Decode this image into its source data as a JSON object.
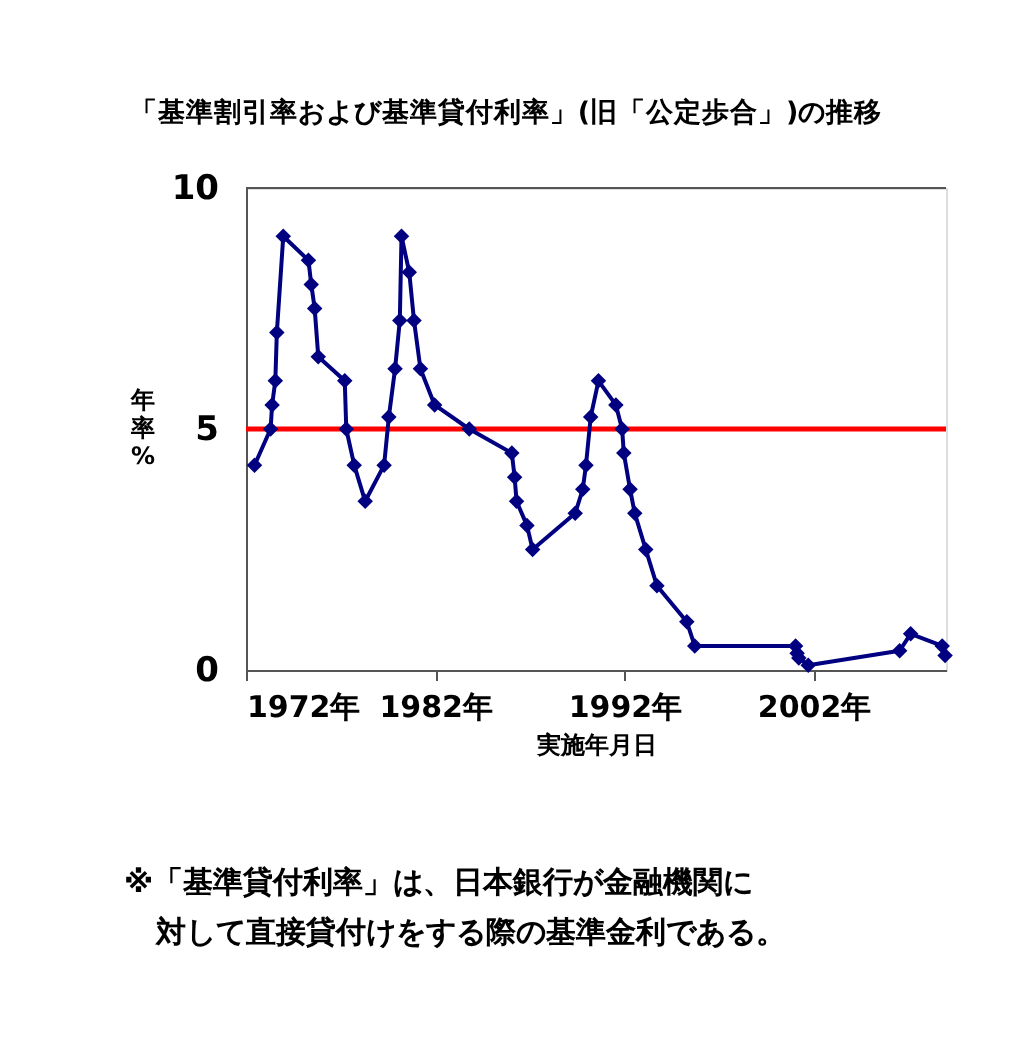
{
  "chart_data": {
    "type": "line",
    "title": "「基準割引率および基準貸付利率」(旧「公定歩合」)の推移",
    "xlabel": "実施年月日",
    "ylabel": "年率%",
    "x": [
      1972.45,
      1973.3,
      1973.38,
      1973.55,
      1973.63,
      1973.97,
      1975.3,
      1975.45,
      1975.63,
      1975.82,
      1977.22,
      1977.3,
      1977.72,
      1978.3,
      1979.3,
      1979.55,
      1979.88,
      1980.13,
      1980.22,
      1980.63,
      1980.88,
      1981.22,
      1981.97,
      1983.8,
      1986.05,
      1986.2,
      1986.3,
      1986.85,
      1987.15,
      1989.4,
      1989.8,
      1989.97,
      1990.22,
      1990.63,
      1991.55,
      1991.88,
      1991.97,
      1992.3,
      1992.55,
      1993.13,
      1993.72,
      1995.3,
      1995.72,
      2001.05,
      2001.13,
      2001.22,
      2001.72,
      2006.55,
      2007.13,
      2008.8,
      2008.95
    ],
    "series": [
      {
        "color": "#000080",
        "values": [
          4.25,
          5.0,
          5.5,
          6.0,
          7.0,
          9.0,
          8.5,
          8.0,
          7.5,
          6.5,
          6.0,
          5.0,
          4.25,
          3.5,
          4.25,
          5.25,
          6.25,
          7.25,
          9.0,
          8.25,
          7.25,
          6.25,
          5.5,
          5.0,
          4.5,
          4.0,
          3.5,
          3.0,
          2.5,
          3.25,
          3.75,
          4.25,
          5.25,
          6.0,
          5.5,
          5.0,
          4.5,
          3.75,
          3.25,
          2.5,
          1.75,
          1.0,
          0.5,
          0.5,
          0.35,
          0.25,
          0.1,
          0.4,
          0.75,
          0.5,
          0.3
        ]
      }
    ],
    "xlim": [
      1972,
      2009
    ],
    "xticks": [
      {
        "value": 1972,
        "label": "1972年"
      },
      {
        "value": 1982,
        "label": "1982年"
      },
      {
        "value": 1992,
        "label": "1992年"
      },
      {
        "value": 2002,
        "label": "2002年"
      }
    ],
    "ylim": [
      0,
      10
    ],
    "yticks": [
      0,
      5,
      10
    ],
    "ref_lines": [
      {
        "axis": "y",
        "value": 5,
        "color": "#ff0000",
        "line_style": "solid"
      }
    ],
    "marker": "diamond",
    "line_style": "solid",
    "grid": false,
    "annotations": [
      "※「基準貸付利率」は、日本銀行が金融機関に",
      "対して直接貸付けをする際の基準金利である。"
    ]
  }
}
